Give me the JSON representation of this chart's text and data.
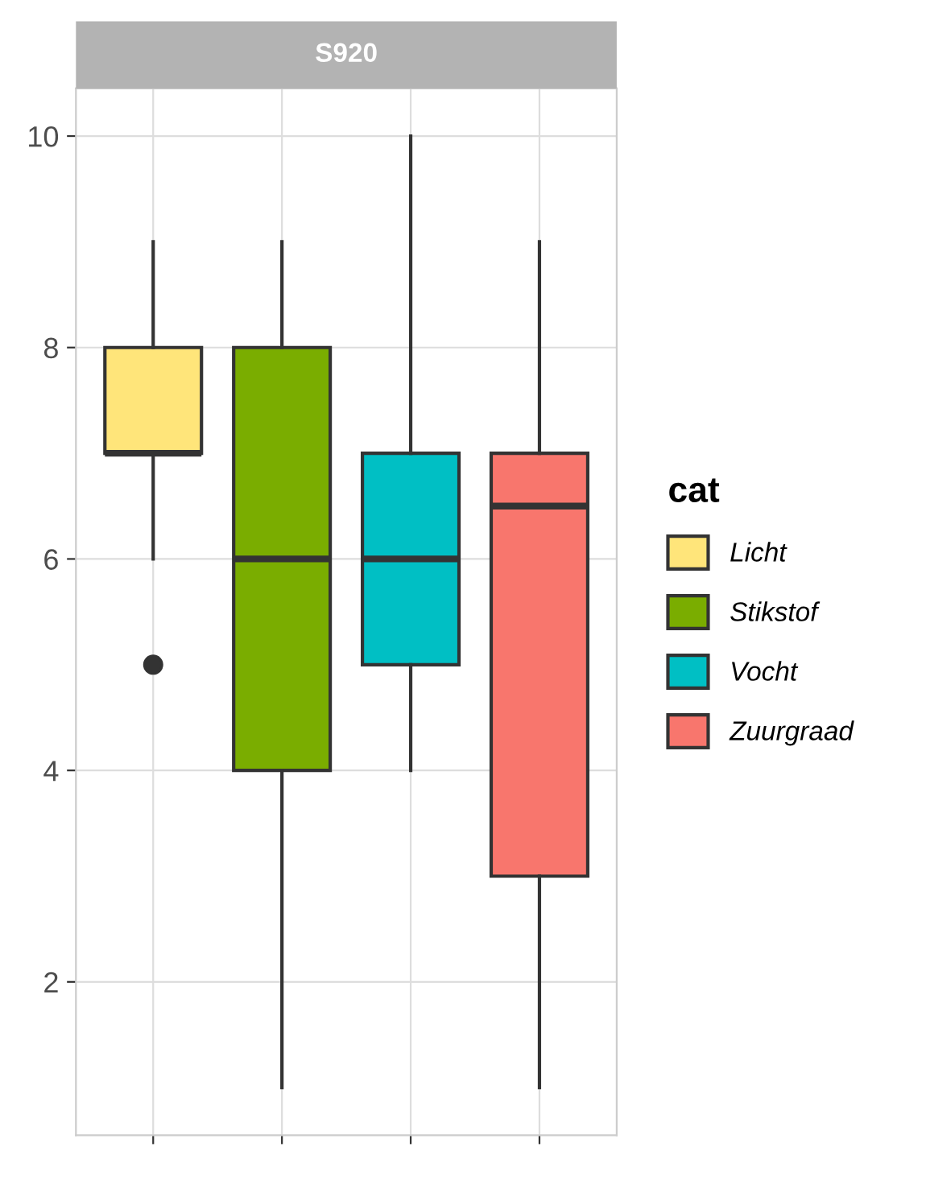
{
  "chart_data": {
    "type": "box",
    "title": "S920",
    "legend_title": "cat",
    "categories": [
      null,
      null,
      null,
      null
    ],
    "series": [
      {
        "name": "Licht",
        "color": "#ffe57a",
        "boxes": [
          {
            "low": 6,
            "q1": 7,
            "median": 7,
            "q3": 8,
            "high": 9,
            "outliers": [
              5
            ]
          },
          null,
          null,
          null
        ]
      },
      {
        "name": "Stikstof",
        "color": "#7aad00",
        "boxes": [
          null,
          {
            "low": 1,
            "q1": 4,
            "median": 6,
            "q3": 8,
            "high": 9
          },
          null,
          null
        ]
      },
      {
        "name": "Vocht",
        "color": "#00bfc4",
        "boxes": [
          null,
          null,
          {
            "low": 4,
            "q1": 5,
            "median": 6,
            "q3": 7,
            "high": 10
          },
          null
        ]
      },
      {
        "name": "Zuurgraad",
        "color": "#f8766d",
        "boxes": [
          null,
          null,
          null,
          {
            "low": 1,
            "q1": 3,
            "median": 6.5,
            "q3": 7,
            "high": 9
          }
        ]
      }
    ],
    "ylim": [
      0.55,
      10.45
    ],
    "yticks": [
      2,
      4,
      6,
      8,
      10
    ],
    "grid": true,
    "legend": "right",
    "tick_labels": "y"
  }
}
